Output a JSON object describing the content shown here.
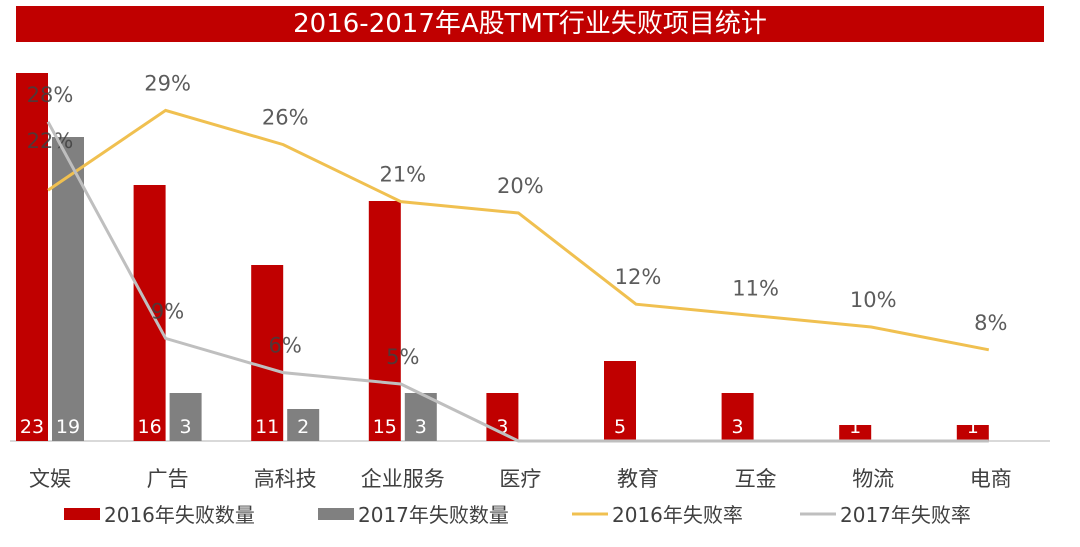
{
  "chart_data": {
    "type": "bar+line",
    "title": "2016-2017年A股TMT行业失败项目统计",
    "categories": [
      "文娱",
      "广告",
      "高科技",
      "企业服务",
      "医疗",
      "教育",
      "互金",
      "物流",
      "电商"
    ],
    "series": [
      {
        "name": "2016年失败数量",
        "type": "bar",
        "color": "#c00000",
        "values": [
          23,
          16,
          11,
          15,
          3,
          5,
          3,
          1,
          1
        ]
      },
      {
        "name": "2017年失败数量",
        "type": "bar",
        "color": "#808080",
        "values": [
          19,
          3,
          2,
          3,
          0,
          0,
          0,
          0,
          0
        ]
      },
      {
        "name": "2016年失败率",
        "type": "line",
        "color": "#f0c050",
        "values": [
          22,
          29,
          26,
          21,
          20,
          12,
          11,
          10,
          8
        ],
        "labels": [
          "22%",
          "29%",
          "26%",
          "21%",
          "20%",
          "12%",
          "11%",
          "10%",
          "8%"
        ]
      },
      {
        "name": "2017年失败率",
        "type": "line",
        "color": "#bfbfbf",
        "values": [
          28,
          9,
          6,
          5,
          0,
          0,
          0,
          0,
          0
        ],
        "labels": [
          "28%",
          "9%",
          "6%",
          "5%"
        ]
      }
    ],
    "legend": "bottom",
    "grid": false
  }
}
